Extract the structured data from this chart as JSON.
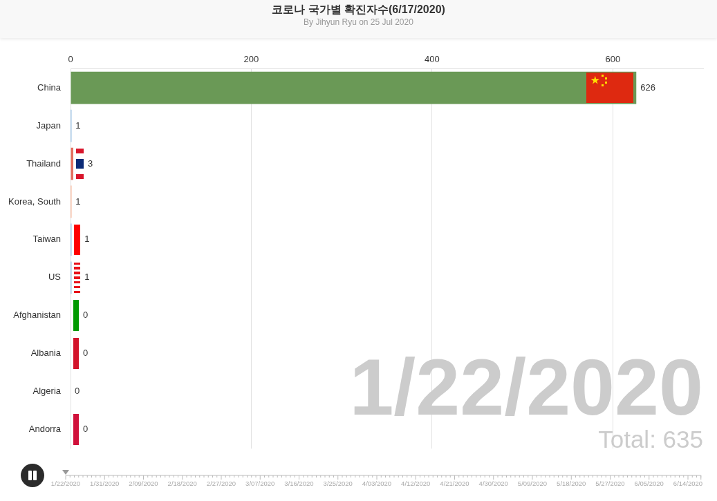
{
  "chart_data": {
    "type": "bar",
    "orientation": "horizontal",
    "title": "코로나 국가별 확진자수(6/17/2020)",
    "subtitle": "By Jihyun Ryu on 25 Jul 2020",
    "categories": [
      "China",
      "Japan",
      "Thailand",
      "Korea, South",
      "Taiwan",
      "US",
      "Afghanistan",
      "Albania",
      "Algeria",
      "Andorra"
    ],
    "values": [
      626,
      1,
      3,
      1,
      1,
      1,
      0,
      0,
      0,
      0
    ],
    "colors": [
      "#6a9956",
      "#5b9bd5",
      "#e36c5c",
      "#f08a5d",
      "#5b9bd5",
      "#5b9bd5",
      "#3a9d23",
      "#c0392b",
      "#3a9d23",
      "#c0392b"
    ],
    "xlim": [
      0,
      700
    ],
    "xticks": [
      0,
      200,
      400,
      600
    ],
    "grid": "x",
    "data_labels": true,
    "annotations": [
      "1/22/2020",
      "Total: 635",
      "1/22/2020",
      "1/31/2020",
      "2/09/2020",
      "2/18/2020",
      "2/27/2020",
      "3/07/2020",
      "3/16/2020",
      "3/25/2020",
      "4/03/2020",
      "4/12/2020",
      "4/21/2020",
      "4/30/2020",
      "5/09/2020",
      "5/18/2020",
      "5/27/2020",
      "6/05/2020",
      "6/14/2020"
    ]
  }
}
